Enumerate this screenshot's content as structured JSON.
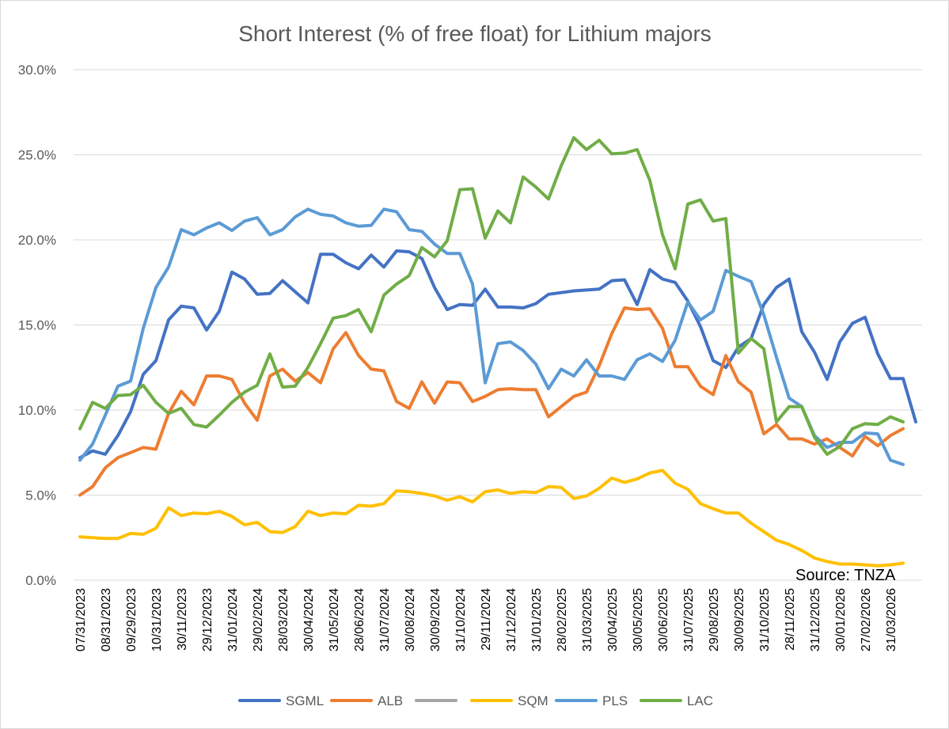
{
  "chart_data": {
    "type": "line",
    "title": "Short Interest (% of free float) for Lithium majors",
    "xlabel": "",
    "ylabel": "",
    "ylim": [
      0,
      30
    ],
    "y_ticks": [
      "0.0%",
      "5.0%",
      "10.0%",
      "15.0%",
      "20.0%",
      "25.0%",
      "30.0%"
    ],
    "grid": "horizontal",
    "legend_position": "bottom",
    "annotation": "Source: TNZA",
    "x_tick_labels": [
      "07/31/2023",
      "08/31/2023",
      "09/29/2023",
      "10/31/2023",
      "30/11/2023",
      "29/12/2023",
      "31/01/2024",
      "29/02/2024",
      "28/03/2024",
      "30/04/2024",
      "31/05/2024",
      "28/06/2024",
      "31/07/2024",
      "30/08/2024",
      "30/09/2024",
      "31/10/2024",
      "29/11/2024",
      "31/12/2024",
      "31/01/2025",
      "28/02/2025",
      "31/03/2025",
      "30/04/2025",
      "30/05/2025",
      "30/06/2025",
      "31/07/2025",
      "29/08/2025",
      "30/09/2025",
      "31/10/2025",
      "28/11/2025",
      "31/12/2025",
      "30/01/2026",
      "27/02/2026",
      "31/03/2026"
    ],
    "series": [
      {
        "name": "SGML",
        "color": "#4472C4",
        "values": [
          7.2,
          7.6,
          7.4,
          8.5,
          9.9,
          12.1,
          12.9,
          15.3,
          16.1,
          16.0,
          14.7,
          15.8,
          18.1,
          17.7,
          16.8,
          16.85,
          17.6,
          16.95,
          16.3,
          19.15,
          19.15,
          18.65,
          18.3,
          19.1,
          18.4,
          19.35,
          19.3,
          18.9,
          17.2,
          15.9,
          16.2,
          16.15,
          17.1,
          16.05,
          16.05,
          16.0,
          16.25,
          16.8,
          16.9,
          17.0,
          17.05,
          17.1,
          17.6,
          17.65,
          16.2,
          18.25,
          17.7,
          17.5,
          16.4,
          14.9,
          12.9,
          12.5,
          13.7,
          14.2,
          16.2,
          17.2,
          17.7,
          14.6,
          13.4,
          11.8,
          14.0,
          15.1,
          15.45,
          13.3,
          11.85,
          11.85,
          9.3
        ]
      },
      {
        "name": "ALB",
        "color": "#ED7D31",
        "values": [
          5.0,
          5.5,
          6.6,
          7.2,
          7.5,
          7.8,
          7.7,
          9.8,
          11.1,
          10.3,
          12.0,
          12.0,
          11.8,
          10.4,
          9.4,
          12.0,
          12.4,
          11.7,
          12.2,
          11.6,
          13.6,
          14.55,
          13.2,
          12.4,
          12.3,
          10.5,
          10.1,
          11.65,
          10.4,
          11.65,
          11.6,
          10.5,
          10.8,
          11.2,
          11.25,
          11.2,
          11.2,
          9.6,
          10.2,
          10.8,
          11.05,
          12.6,
          14.5,
          16.0,
          15.9,
          15.95,
          14.8,
          12.55,
          12.55,
          11.4,
          10.9,
          13.2,
          11.65,
          11.05,
          8.6,
          9.15,
          8.3,
          8.3,
          8.0,
          8.3,
          7.8,
          7.3,
          8.45,
          7.9,
          8.5,
          8.9
        ]
      },
      {
        "name": "",
        "color": "#A5A5A5",
        "values": []
      },
      {
        "name": "SQM",
        "color": "#FFC000",
        "values": [
          2.55,
          2.5,
          2.45,
          2.45,
          2.75,
          2.7,
          3.05,
          4.25,
          3.8,
          3.95,
          3.9,
          4.05,
          3.75,
          3.25,
          3.4,
          2.85,
          2.8,
          3.15,
          4.05,
          3.8,
          3.95,
          3.9,
          4.4,
          4.35,
          4.5,
          5.25,
          5.2,
          5.1,
          4.95,
          4.7,
          4.9,
          4.6,
          5.2,
          5.3,
          5.1,
          5.2,
          5.15,
          5.5,
          5.45,
          4.8,
          4.95,
          5.4,
          6.0,
          5.75,
          5.95,
          6.3,
          6.45,
          5.7,
          5.35,
          4.5,
          4.2,
          3.95,
          3.95,
          3.35,
          2.85,
          2.35,
          2.1,
          1.75,
          1.3,
          1.1,
          0.95,
          0.95,
          0.9,
          0.85,
          0.9,
          1.0
        ]
      },
      {
        "name": "PLS",
        "color": "#5B9BD5",
        "values": [
          7.05,
          8.0,
          9.7,
          11.4,
          11.7,
          14.8,
          17.2,
          18.4,
          20.6,
          20.3,
          20.7,
          21.0,
          20.55,
          21.1,
          21.3,
          20.3,
          20.6,
          21.35,
          21.8,
          21.5,
          21.4,
          21.0,
          20.8,
          20.85,
          21.8,
          21.65,
          20.6,
          20.5,
          19.75,
          19.2,
          19.2,
          17.4,
          11.6,
          13.9,
          14.0,
          13.5,
          12.7,
          11.25,
          12.4,
          12.0,
          12.95,
          12.0,
          12.0,
          11.8,
          12.95,
          13.3,
          12.85,
          14.1,
          16.35,
          15.3,
          15.8,
          18.2,
          17.85,
          17.55,
          15.6,
          13.1,
          10.7,
          10.2,
          8.5,
          7.8,
          8.1,
          8.1,
          8.65,
          8.6,
          7.05,
          6.8
        ]
      },
      {
        "name": "LAC",
        "color": "#70AD47",
        "values": [
          8.9,
          10.45,
          10.1,
          10.85,
          10.9,
          11.45,
          10.45,
          9.8,
          10.1,
          9.15,
          9.0,
          9.7,
          10.45,
          11.05,
          11.45,
          13.3,
          11.35,
          11.4,
          12.5,
          13.9,
          15.4,
          15.55,
          15.9,
          14.6,
          16.75,
          17.4,
          17.9,
          19.55,
          19.0,
          19.95,
          22.95,
          23.0,
          20.1,
          21.7,
          21.0,
          23.7,
          23.1,
          22.4,
          24.35,
          26.0,
          25.3,
          25.85,
          25.05,
          25.1,
          25.3,
          23.5,
          20.3,
          18.3,
          22.1,
          22.35,
          21.1,
          21.25,
          13.35,
          14.2,
          13.6,
          9.3,
          10.2,
          10.2,
          8.4,
          7.4,
          7.85,
          8.9,
          9.2,
          9.15,
          9.6,
          9.3
        ]
      }
    ]
  }
}
